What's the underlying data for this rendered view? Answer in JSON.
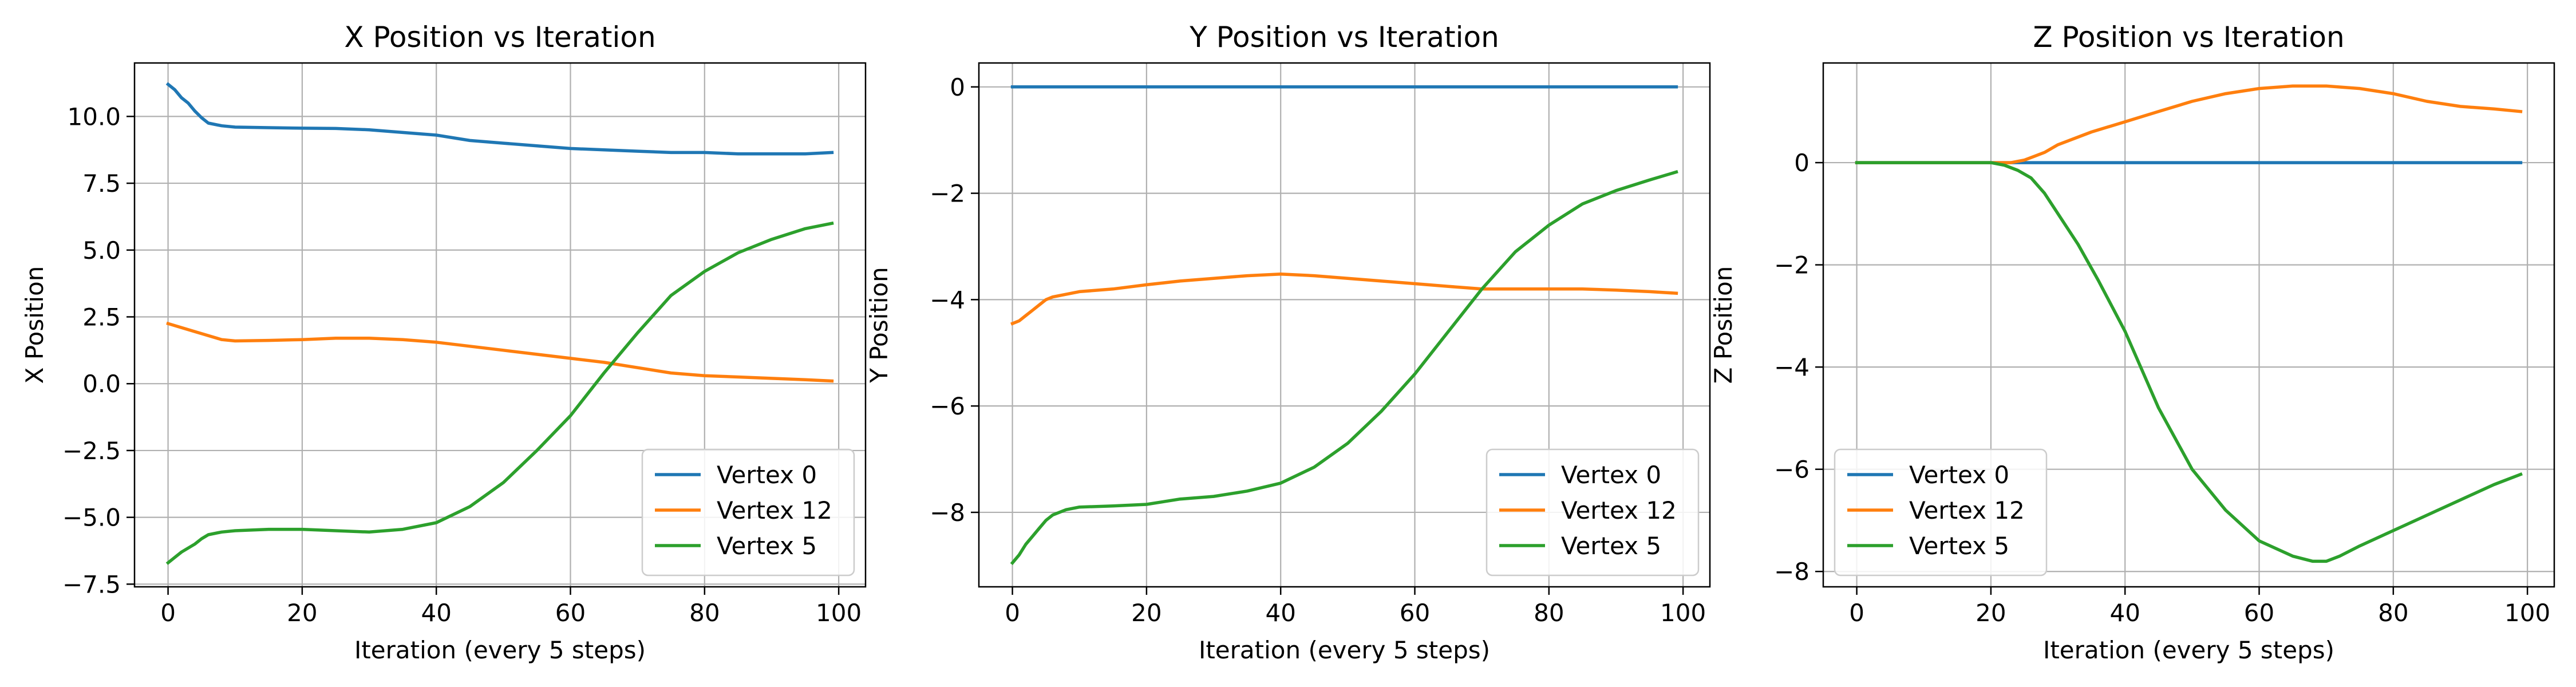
{
  "chart_data": [
    {
      "type": "line",
      "title": "X Position vs Iteration",
      "xlabel": "Iteration (every 5 steps)",
      "ylabel": "X Position",
      "xlim": [
        -5,
        104
      ],
      "ylim": [
        -7.6,
        12.0
      ],
      "xticks": [
        0,
        20,
        40,
        60,
        80,
        100
      ],
      "xtick_labels": [
        "0",
        "20",
        "40",
        "60",
        "80",
        "100"
      ],
      "yticks": [
        -7.5,
        -5.0,
        -2.5,
        0.0,
        2.5,
        5.0,
        7.5,
        10.0
      ],
      "ytick_labels": [
        "−7.5",
        "−5.0",
        "−2.5",
        "0.0",
        "2.5",
        "5.0",
        "7.5",
        "10.0"
      ],
      "grid": true,
      "legend_position": "lower-right",
      "series": [
        {
          "name": "Vertex 0",
          "color": "#1f77b4",
          "x": [
            0,
            1,
            2,
            3,
            4,
            5,
            6,
            8,
            10,
            15,
            20,
            25,
            30,
            35,
            40,
            45,
            50,
            55,
            60,
            65,
            70,
            75,
            80,
            85,
            90,
            95,
            99
          ],
          "y": [
            11.2,
            11.0,
            10.7,
            10.5,
            10.2,
            9.95,
            9.75,
            9.65,
            9.6,
            9.58,
            9.56,
            9.55,
            9.5,
            9.4,
            9.3,
            9.1,
            9.0,
            8.9,
            8.8,
            8.75,
            8.7,
            8.65,
            8.65,
            8.6,
            8.6,
            8.6,
            8.65
          ]
        },
        {
          "name": "Vertex 12",
          "color": "#ff7f0e",
          "x": [
            0,
            2,
            4,
            6,
            8,
            10,
            15,
            20,
            25,
            30,
            35,
            40,
            45,
            50,
            55,
            60,
            65,
            70,
            75,
            80,
            85,
            90,
            95,
            99
          ],
          "y": [
            2.25,
            2.1,
            1.95,
            1.8,
            1.65,
            1.6,
            1.62,
            1.65,
            1.7,
            1.7,
            1.65,
            1.55,
            1.4,
            1.25,
            1.1,
            0.95,
            0.8,
            0.6,
            0.4,
            0.3,
            0.25,
            0.2,
            0.15,
            0.1
          ]
        },
        {
          "name": "Vertex 5",
          "color": "#2ca02c",
          "x": [
            0,
            1,
            2,
            3,
            4,
            5,
            6,
            8,
            10,
            15,
            20,
            25,
            30,
            35,
            40,
            45,
            50,
            55,
            60,
            65,
            70,
            75,
            80,
            85,
            90,
            95,
            99
          ],
          "y": [
            -6.7,
            -6.5,
            -6.3,
            -6.15,
            -6.0,
            -5.8,
            -5.65,
            -5.55,
            -5.5,
            -5.45,
            -5.45,
            -5.5,
            -5.55,
            -5.45,
            -5.2,
            -4.6,
            -3.7,
            -2.5,
            -1.2,
            0.4,
            1.9,
            3.3,
            4.2,
            4.9,
            5.4,
            5.8,
            6.0
          ]
        }
      ]
    },
    {
      "type": "line",
      "title": "Y Position vs Iteration",
      "xlabel": "Iteration (every 5 steps)",
      "ylabel": "Y Position",
      "xlim": [
        -5,
        104
      ],
      "ylim": [
        -9.4,
        0.45
      ],
      "xticks": [
        0,
        20,
        40,
        60,
        80,
        100
      ],
      "xtick_labels": [
        "0",
        "20",
        "40",
        "60",
        "80",
        "100"
      ],
      "yticks": [
        -8,
        -6,
        -4,
        -2,
        0
      ],
      "ytick_labels": [
        "−8",
        "−6",
        "−4",
        "−2",
        "0"
      ],
      "grid": true,
      "legend_position": "lower-right",
      "series": [
        {
          "name": "Vertex 0",
          "color": "#1f77b4",
          "x": [
            0,
            99
          ],
          "y": [
            0.0,
            0.0
          ]
        },
        {
          "name": "Vertex 12",
          "color": "#ff7f0e",
          "x": [
            0,
            1,
            2,
            3,
            4,
            5,
            6,
            8,
            10,
            15,
            20,
            25,
            30,
            35,
            40,
            45,
            50,
            55,
            60,
            65,
            70,
            75,
            80,
            85,
            90,
            95,
            99
          ],
          "y": [
            -4.45,
            -4.4,
            -4.3,
            -4.2,
            -4.1,
            -4.0,
            -3.95,
            -3.9,
            -3.85,
            -3.8,
            -3.72,
            -3.65,
            -3.6,
            -3.55,
            -3.52,
            -3.55,
            -3.6,
            -3.65,
            -3.7,
            -3.75,
            -3.8,
            -3.8,
            -3.8,
            -3.8,
            -3.82,
            -3.85,
            -3.88
          ]
        },
        {
          "name": "Vertex 5",
          "color": "#2ca02c",
          "x": [
            0,
            1,
            2,
            3,
            4,
            5,
            6,
            8,
            10,
            15,
            20,
            25,
            30,
            35,
            40,
            45,
            50,
            55,
            60,
            65,
            70,
            75,
            80,
            85,
            90,
            95,
            99
          ],
          "y": [
            -8.95,
            -8.8,
            -8.6,
            -8.45,
            -8.3,
            -8.15,
            -8.05,
            -7.95,
            -7.9,
            -7.88,
            -7.85,
            -7.75,
            -7.7,
            -7.6,
            -7.45,
            -7.15,
            -6.7,
            -6.1,
            -5.4,
            -4.6,
            -3.8,
            -3.1,
            -2.6,
            -2.2,
            -1.95,
            -1.75,
            -1.6
          ]
        }
      ]
    },
    {
      "type": "line",
      "title": "Z Position vs Iteration",
      "xlabel": "Iteration (every 5 steps)",
      "ylabel": "Z Position",
      "xlim": [
        -5,
        104
      ],
      "ylim": [
        -8.3,
        1.95
      ],
      "xticks": [
        0,
        20,
        40,
        60,
        80,
        100
      ],
      "xtick_labels": [
        "0",
        "20",
        "40",
        "60",
        "80",
        "100"
      ],
      "yticks": [
        -8,
        -6,
        -4,
        -2,
        0
      ],
      "ytick_labels": [
        "−8",
        "−6",
        "−4",
        "−2",
        "0"
      ],
      "grid": true,
      "legend_position": "lower-left",
      "series": [
        {
          "name": "Vertex 0",
          "color": "#1f77b4",
          "x": [
            0,
            99
          ],
          "y": [
            0.0,
            0.0
          ]
        },
        {
          "name": "Vertex 12",
          "color": "#ff7f0e",
          "x": [
            0,
            10,
            20,
            23,
            25,
            28,
            30,
            35,
            40,
            45,
            50,
            55,
            60,
            65,
            70,
            75,
            80,
            85,
            90,
            95,
            99
          ],
          "y": [
            0.0,
            0.0,
            0.0,
            0.0,
            0.05,
            0.2,
            0.35,
            0.6,
            0.8,
            1.0,
            1.2,
            1.35,
            1.45,
            1.5,
            1.5,
            1.45,
            1.35,
            1.2,
            1.1,
            1.05,
            1.0
          ]
        },
        {
          "name": "Vertex 5",
          "color": "#2ca02c",
          "x": [
            0,
            10,
            20,
            22,
            24,
            26,
            28,
            30,
            33,
            36,
            40,
            45,
            50,
            55,
            60,
            65,
            68,
            70,
            72,
            75,
            80,
            85,
            90,
            95,
            99
          ],
          "y": [
            0.0,
            0.0,
            0.0,
            -0.05,
            -0.15,
            -0.3,
            -0.6,
            -1.0,
            -1.6,
            -2.3,
            -3.3,
            -4.8,
            -6.0,
            -6.8,
            -7.4,
            -7.7,
            -7.8,
            -7.8,
            -7.7,
            -7.5,
            -7.2,
            -6.9,
            -6.6,
            -6.3,
            -6.1
          ]
        }
      ]
    }
  ]
}
